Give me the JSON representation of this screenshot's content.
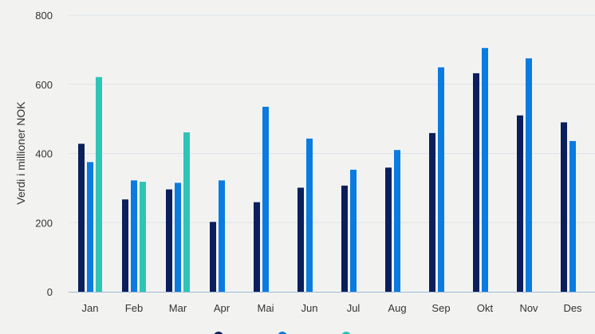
{
  "chart_data": {
    "type": "bar",
    "ylabel": "Verdi i millioner NOK",
    "ylim": [
      0,
      800
    ],
    "yticks": [
      0,
      200,
      400,
      600,
      800
    ],
    "grid": true,
    "legend_position": "bottom",
    "categories": [
      "Jan",
      "Feb",
      "Mar",
      "Apr",
      "Mai",
      "Jun",
      "Jul",
      "Aug",
      "Sep",
      "Okt",
      "Nov",
      "Des"
    ],
    "series": [
      {
        "color": "#0b1f5c",
        "values": [
          428,
          267,
          296,
          202,
          259,
          301,
          307,
          359,
          459,
          632,
          510,
          490
        ]
      },
      {
        "color": "#0a7be0",
        "values": [
          375,
          322,
          315,
          322,
          535,
          443,
          353,
          410,
          649,
          705,
          675,
          436
        ]
      },
      {
        "color": "#2ec4b6",
        "values": [
          621,
          318,
          461,
          null,
          null,
          null,
          null,
          null,
          null,
          null,
          null,
          null
        ]
      }
    ]
  }
}
